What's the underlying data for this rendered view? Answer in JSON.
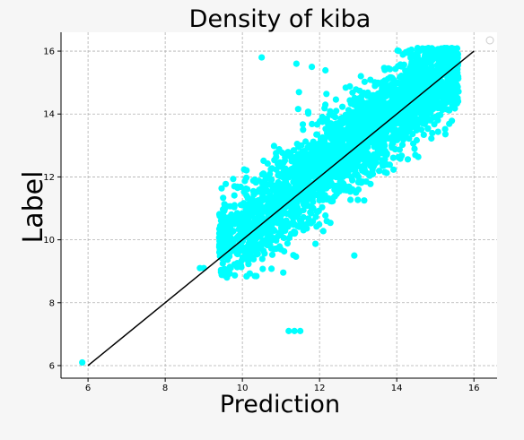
{
  "chart_data": {
    "type": "scatter",
    "title": "Density of kiba",
    "xlabel": "Prediction",
    "ylabel": "Label",
    "xlim": [
      5.3,
      16.6
    ],
    "ylim": [
      5.6,
      16.6
    ],
    "xticks": [
      6,
      8,
      10,
      12,
      14,
      16
    ],
    "yticks": [
      6,
      8,
      10,
      12,
      14,
      16
    ],
    "x_tick_labels": [
      "6",
      "8",
      "10",
      "12",
      "14",
      "16"
    ],
    "y_tick_labels": [
      "6",
      "8",
      "10",
      "12",
      "14",
      "16"
    ],
    "grid": true,
    "legend": "top-right (empty marker)",
    "point_color": "#00ffff",
    "line_color": "#000000",
    "reference_line": {
      "x": [
        6,
        16
      ],
      "y": [
        6,
        16
      ]
    },
    "outlier_points": [
      {
        "x": 5.85,
        "y": 6.1
      },
      {
        "x": 8.9,
        "y": 9.1
      },
      {
        "x": 9.0,
        "y": 9.1
      },
      {
        "x": 11.2,
        "y": 7.1
      },
      {
        "x": 11.35,
        "y": 7.1
      },
      {
        "x": 11.5,
        "y": 7.1
      },
      {
        "x": 10.5,
        "y": 15.8
      },
      {
        "x": 12.9,
        "y": 9.5
      },
      {
        "x": 9.6,
        "y": 8.8
      },
      {
        "x": 11.4,
        "y": 15.6
      },
      {
        "x": 11.8,
        "y": 15.5
      },
      {
        "x": 15.3,
        "y": 16.1
      },
      {
        "x": 15.0,
        "y": 16.0
      }
    ],
    "cluster": {
      "description": "dense band of points roughly along y = x",
      "x_range": [
        9.4,
        15.6
      ],
      "y_range": [
        8.8,
        16.1
      ],
      "spread": 1.0,
      "n_points": 2800
    }
  }
}
